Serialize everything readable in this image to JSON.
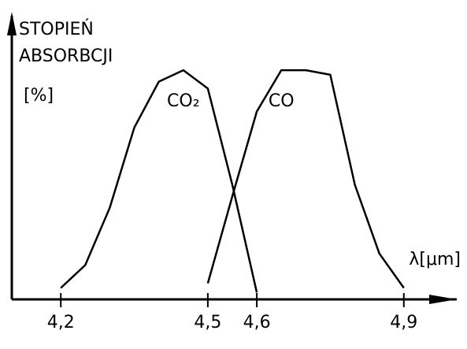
{
  "chart_data": {
    "type": "line",
    "ylabel": [
      "STOPIEŃ",
      "ABSORBCJI",
      "[%]"
    ],
    "xlabel": "λ[μm]",
    "series": [
      {
        "name": "CO₂",
        "color": "#000000",
        "x": [
          4.2,
          4.25,
          4.3,
          4.35,
          4.4,
          4.45,
          4.5,
          4.55,
          4.6
        ],
        "values": [
          5,
          15,
          40,
          75,
          95,
          100,
          92,
          50,
          3
        ]
      },
      {
        "name": "CO",
        "color": "#000000",
        "x": [
          4.5,
          4.55,
          4.6,
          4.65,
          4.7,
          4.75,
          4.8,
          4.85,
          4.9
        ],
        "values": [
          7,
          45,
          82,
          100,
          100,
          98,
          50,
          20,
          5
        ]
      }
    ],
    "xlim": [
      4.1,
      5.0
    ],
    "ylim": [
      0,
      110
    ],
    "xticks": [
      {
        "value": 4.2,
        "label": "4,2"
      },
      {
        "value": 4.5,
        "label": "4,5"
      },
      {
        "value": 4.6,
        "label": "4,6"
      },
      {
        "value": 4.9,
        "label": "4,9"
      }
    ],
    "grid": false
  }
}
